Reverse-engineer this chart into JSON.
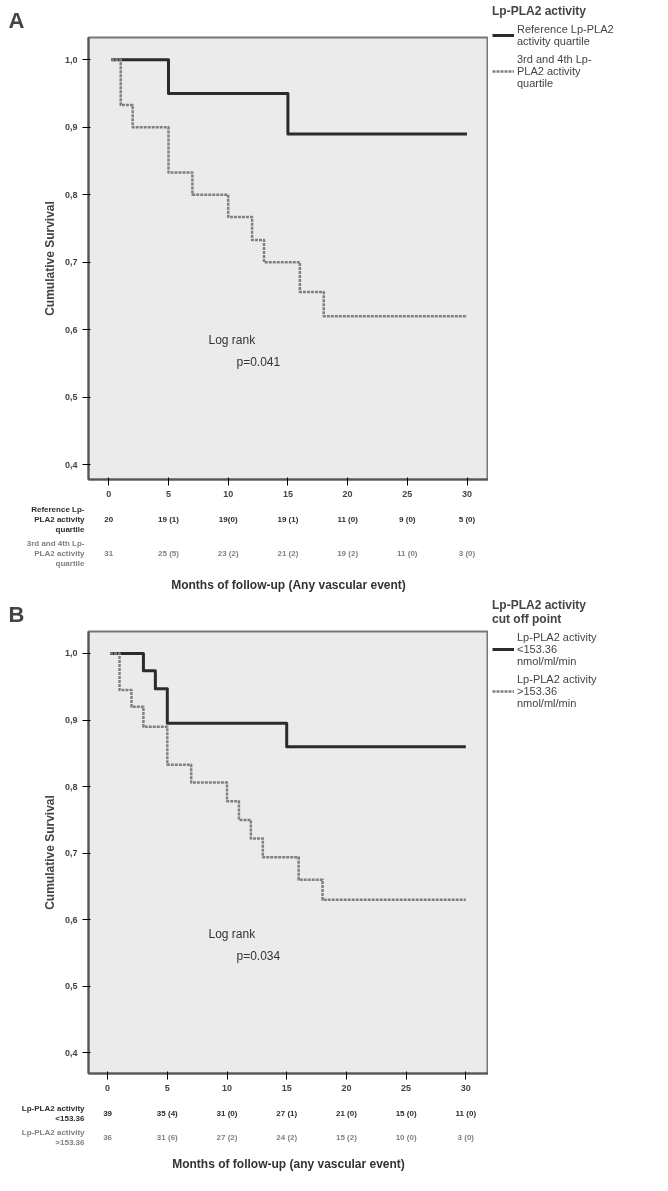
{
  "chart_data": [
    {
      "type": "step",
      "title": "A",
      "xlabel": "Months of follow-up (Any vascular event)",
      "ylabel": "Cumulative Survival",
      "legend_title": "Lp-PLA2 activity",
      "xlim": [
        -1.7,
        31.8
      ],
      "ylim": [
        0.378,
        1.033
      ],
      "xticks": [
        0,
        5,
        10,
        15,
        20,
        25,
        30
      ],
      "yticks": [
        {
          "value": 0.4,
          "label": "0,4"
        },
        {
          "value": 0.5,
          "label": "0,5"
        },
        {
          "value": 0.6,
          "label": "0,6"
        },
        {
          "value": 0.7,
          "label": "0,7"
        },
        {
          "value": 0.8,
          "label": "0,8"
        },
        {
          "value": 0.9,
          "label": "0,9"
        },
        {
          "value": 1.0,
          "label": "1,0"
        }
      ],
      "grid": false,
      "legend": "right",
      "series": [
        {
          "name": "Reference Lp-PLA2 activity quartile",
          "color": "#2b2b2b",
          "line_style": "solid",
          "x": [
            0.2,
            5,
            15,
            30
          ],
          "values": [
            1.0,
            0.95,
            0.89,
            0.89
          ]
        },
        {
          "name": "3rd and 4th Lp-PLA2 activity quartile",
          "color": "#808080",
          "line_style": "dotted",
          "x": [
            0.2,
            1,
            2,
            5,
            7,
            10,
            12,
            13,
            16,
            18,
            30
          ],
          "values": [
            1.0,
            0.933,
            0.9,
            0.833,
            0.8,
            0.767,
            0.733,
            0.7,
            0.656,
            0.62,
            0.62
          ]
        }
      ],
      "annotations": [
        "Log rank",
        "p=0.041",
        "Reference Lp-PLA2 activity quartile",
        "20",
        "19 (1)",
        "19(0)",
        "19 (1)",
        "11 (0)",
        "9 (0)",
        "5 (0)",
        "3rd and 4th Lp-PLA2 activity quartile",
        "31",
        "25 (5)",
        "23 (2)",
        "21 (2)",
        "19 (2)",
        "11 (0)",
        "3 (0)"
      ]
    },
    {
      "type": "step",
      "title": "B",
      "xlabel": "Months of follow-up (any vascular event)",
      "ylabel": "Cumulative Survival",
      "legend_title": "Lp-PLA2 activity cut off point",
      "xlim": [
        -1.6,
        31.9
      ],
      "ylim": [
        0.369,
        1.033
      ],
      "xticks": [
        0,
        5,
        10,
        15,
        20,
        25,
        30
      ],
      "yticks": [
        {
          "value": 0.4,
          "label": "0,4"
        },
        {
          "value": 0.5,
          "label": "0,5"
        },
        {
          "value": 0.6,
          "label": "0,6"
        },
        {
          "value": 0.7,
          "label": "0,7"
        },
        {
          "value": 0.8,
          "label": "0,8"
        },
        {
          "value": 0.9,
          "label": "0,9"
        },
        {
          "value": 1.0,
          "label": "1,0"
        }
      ],
      "grid": false,
      "legend": "right",
      "series": [
        {
          "name": "Lp-PLA2 activity <153.36 nmol/ml/min",
          "color": "#2b2b2b",
          "line_style": "solid",
          "x": [
            0.2,
            3,
            4,
            5,
            15,
            30
          ],
          "values": [
            1.0,
            0.974,
            0.947,
            0.895,
            0.86,
            0.86
          ]
        },
        {
          "name": "Lp-PLA2 activity >153.36 nmol/ml/min",
          "color": "#808080",
          "line_style": "dotted",
          "x": [
            0.2,
            1,
            2,
            3,
            5,
            7,
            10,
            11,
            12,
            13,
            16,
            18,
            30
          ],
          "values": [
            1.0,
            0.945,
            0.92,
            0.89,
            0.833,
            0.806,
            0.778,
            0.75,
            0.722,
            0.694,
            0.66,
            0.63,
            0.63
          ]
        }
      ],
      "annotations": [
        "Log rank",
        "p=0.034",
        "Lp-PLA2 activity <153.36",
        "39",
        "35 (4)",
        "31 (0)",
        "27 (1)",
        "21 (0)",
        "15 (0)",
        "11 (0)",
        "Lp-PLA2 activity >153.36",
        "36",
        "31 (6)",
        "27 (2)",
        "24 (2)",
        "15 (2)",
        "10 (0)",
        "3 (0)"
      ]
    }
  ]
}
